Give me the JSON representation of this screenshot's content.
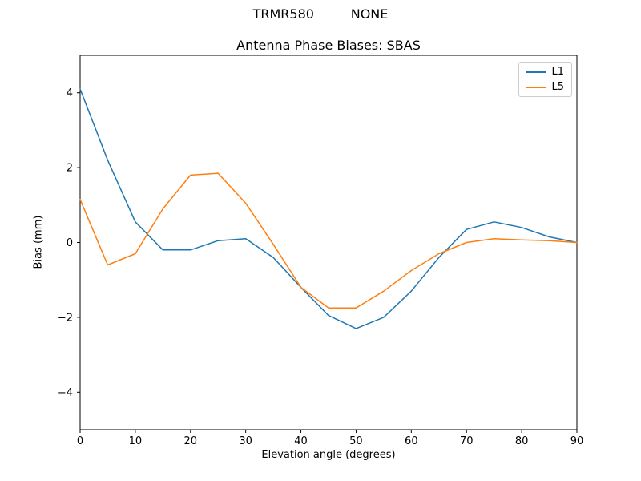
{
  "header": {
    "suptitle": "TRMR580         NONE",
    "title": "Antenna Phase Biases: SBAS"
  },
  "chart_data": {
    "type": "line",
    "title": "Antenna Phase Biases: SBAS",
    "xlabel": "Elevation angle (degrees)",
    "ylabel": "Bias (mm)",
    "xlim": [
      0,
      90
    ],
    "ylim": [
      -5,
      5
    ],
    "xticks": [
      0,
      10,
      20,
      30,
      40,
      50,
      60,
      70,
      80,
      90
    ],
    "yticks": [
      -4,
      -2,
      0,
      2,
      4
    ],
    "grid": false,
    "legend_position": "upper right",
    "x": [
      0,
      5,
      10,
      15,
      20,
      25,
      30,
      35,
      40,
      45,
      50,
      55,
      60,
      65,
      70,
      75,
      80,
      85,
      90
    ],
    "series": [
      {
        "name": "L1",
        "color": "#1f77b4",
        "values": [
          4.1,
          2.2,
          0.55,
          -0.2,
          -0.2,
          0.05,
          0.1,
          -0.4,
          -1.2,
          -1.95,
          -2.3,
          -2.0,
          -1.3,
          -0.4,
          0.35,
          0.55,
          0.4,
          0.15,
          0.0
        ]
      },
      {
        "name": "L5",
        "color": "#ff7f0e",
        "values": [
          1.15,
          -0.6,
          -0.3,
          0.9,
          1.8,
          1.85,
          1.05,
          -0.05,
          -1.2,
          -1.75,
          -1.75,
          -1.3,
          -0.75,
          -0.3,
          0.0,
          0.1,
          0.07,
          0.05,
          0.0
        ]
      }
    ]
  }
}
